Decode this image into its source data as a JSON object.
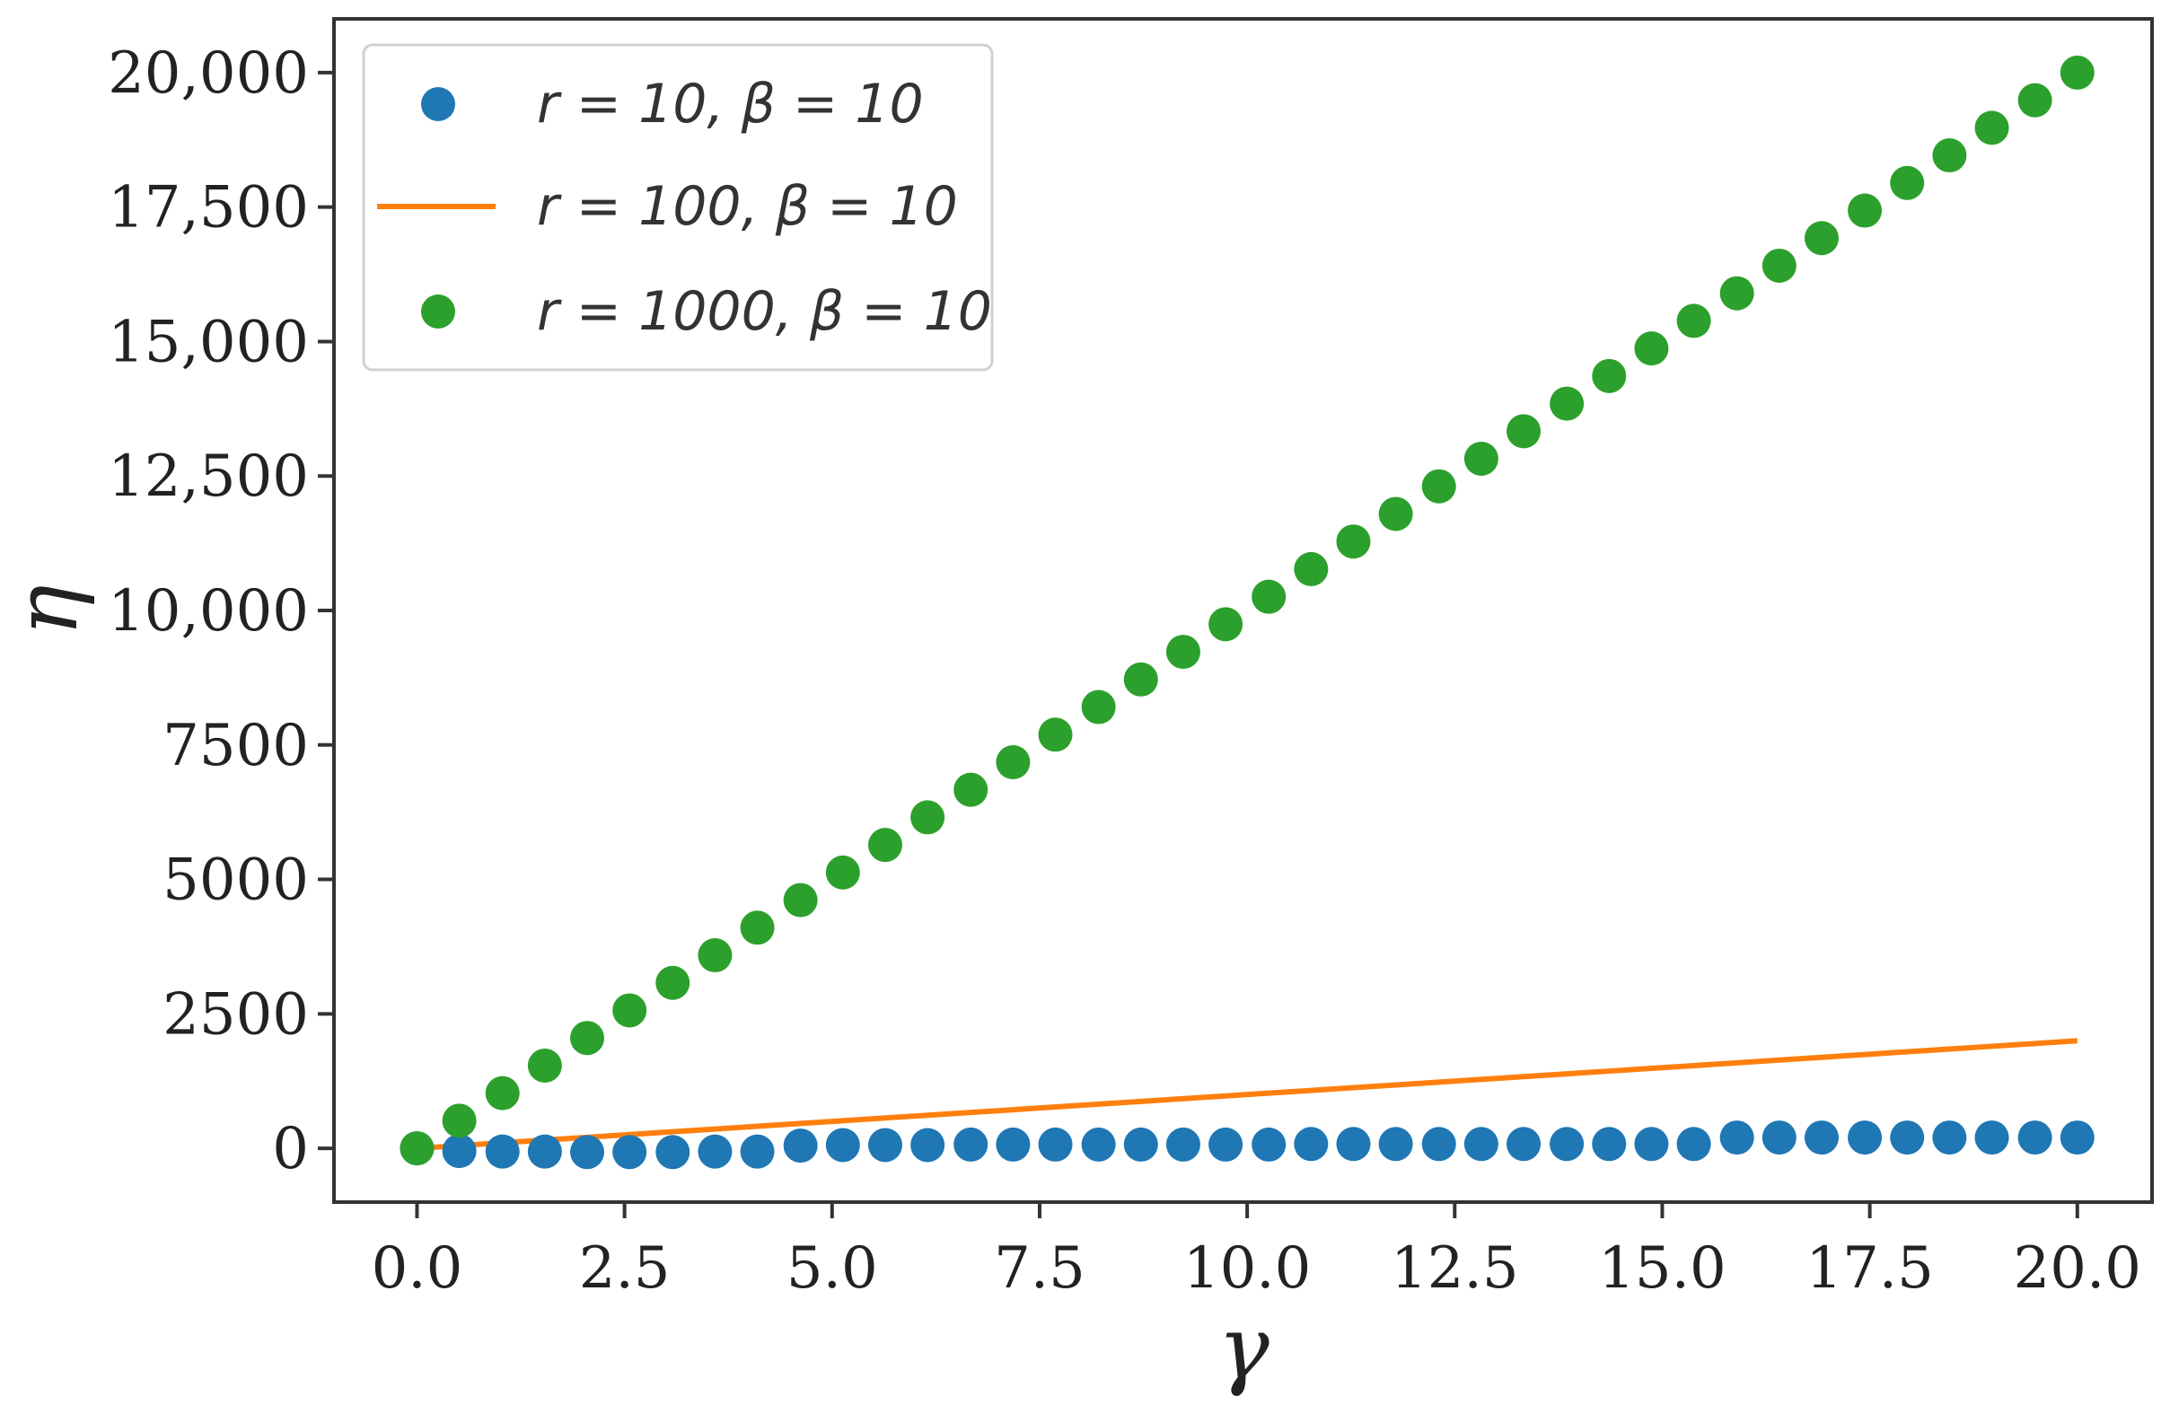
{
  "chart_data": {
    "type": "scatter",
    "xlabel": "γ",
    "ylabel": "η",
    "xlim": [
      -1.0,
      20.9
    ],
    "ylim": [
      -1000,
      21000
    ],
    "x_ticks": [
      0.0,
      2.5,
      5.0,
      7.5,
      10.0,
      12.5,
      15.0,
      17.5,
      20.0
    ],
    "x_tick_labels": [
      "0.0",
      "2.5",
      "5.0",
      "7.5",
      "10.0",
      "12.5",
      "15.0",
      "17.5",
      "20.0"
    ],
    "y_ticks": [
      0,
      2500,
      5000,
      7500,
      10000,
      12500,
      15000,
      17500,
      20000
    ],
    "y_tick_labels": [
      "0",
      "2500",
      "5000",
      "7500",
      "10,000",
      "12,500",
      "15,000",
      "17,500",
      "20,000"
    ],
    "grid": false,
    "legend_position": "top-left",
    "x": [
      0.0,
      0.51,
      1.03,
      1.54,
      2.05,
      2.56,
      3.08,
      3.59,
      4.1,
      4.62,
      5.13,
      5.64,
      6.15,
      6.67,
      7.18,
      7.69,
      8.21,
      8.72,
      9.23,
      9.74,
      10.26,
      10.77,
      11.28,
      11.79,
      12.31,
      12.82,
      13.33,
      13.85,
      14.36,
      14.87,
      15.38,
      15.9,
      16.41,
      16.92,
      17.44,
      17.95,
      18.46,
      18.97,
      19.49,
      20.0
    ],
    "series": [
      {
        "name": "r = 10, β = 10",
        "style": "markers",
        "color": "#1f77b4",
        "values": [
          0,
          -50,
          -60,
          -60,
          -70,
          -70,
          -70,
          -60,
          -60,
          50,
          60,
          60,
          60,
          70,
          70,
          70,
          70,
          70,
          70,
          70,
          70,
          80,
          80,
          80,
          80,
          80,
          80,
          80,
          80,
          80,
          80,
          200,
          200,
          200,
          200,
          200,
          200,
          200,
          200,
          200
        ]
      },
      {
        "name": "r = 100, β = 10",
        "style": "line",
        "color": "#ff7f0e",
        "values": [
          0,
          51,
          103,
          154,
          205,
          256,
          308,
          359,
          410,
          462,
          513,
          564,
          615,
          667,
          718,
          769,
          821,
          872,
          923,
          974,
          1026,
          1077,
          1128,
          1179,
          1231,
          1282,
          1333,
          1385,
          1436,
          1487,
          1538,
          1590,
          1641,
          1692,
          1744,
          1795,
          1846,
          1897,
          1949,
          2000
        ]
      },
      {
        "name": "r = 1000, β = 10",
        "style": "markers",
        "color": "#2ca02c",
        "values": [
          0,
          513,
          1026,
          1538,
          2051,
          2564,
          3077,
          3590,
          4103,
          4615,
          5128,
          5641,
          6154,
          6667,
          7179,
          7692,
          8205,
          8718,
          9231,
          9744,
          10256,
          10769,
          11282,
          11795,
          12308,
          12821,
          13333,
          13846,
          14359,
          14872,
          15385,
          15897,
          16410,
          16923,
          17436,
          17949,
          18462,
          18974,
          19487,
          20000
        ]
      }
    ]
  }
}
